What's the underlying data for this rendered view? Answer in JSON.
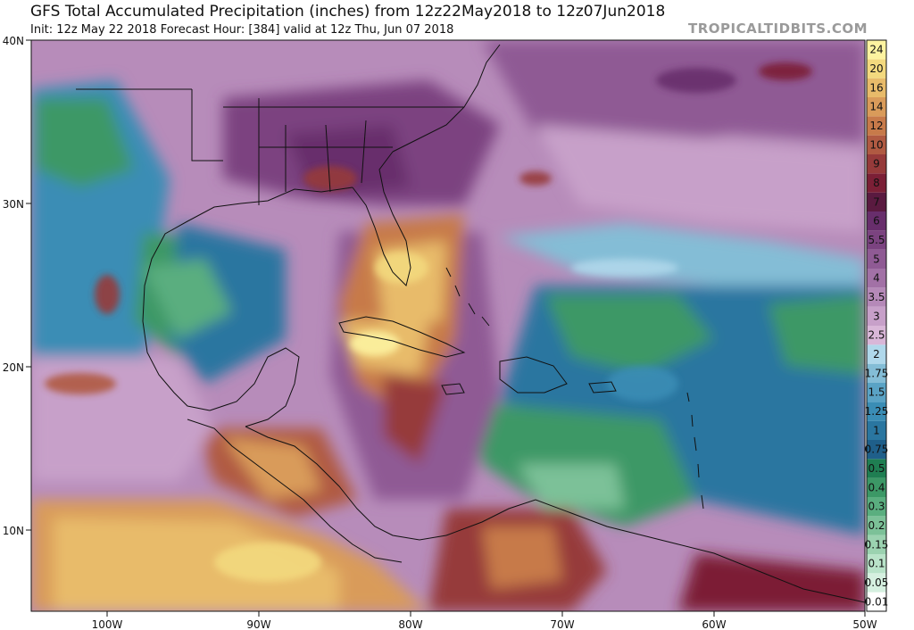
{
  "header": {
    "title": "GFS Total Accumulated Precipitation (inches) from 12z22May2018 to 12z07Jun2018",
    "subtitle": "Init: 12z May 22 2018   Forecast Hour: [384]   valid at 12z Thu, Jun 07 2018",
    "brand": "TROPICALTIDBITS.COM"
  },
  "axes": {
    "lat_labels": [
      "40N",
      "30N",
      "20N",
      "10N"
    ],
    "lon_labels": [
      "100W",
      "90W",
      "80W",
      "70W",
      "60W",
      "50W"
    ]
  },
  "colorbar": {
    "levels": [
      {
        "label": "0.01",
        "color": "#ffffff"
      },
      {
        "label": "0.05",
        "color": "#d6f0e0"
      },
      {
        "label": "0.1",
        "color": "#b9e3c9"
      },
      {
        "label": "0.15",
        "color": "#9bd2b0"
      },
      {
        "label": "0.2",
        "color": "#7cc198"
      },
      {
        "label": "0.3",
        "color": "#5aae7f"
      },
      {
        "label": "0.4",
        "color": "#3c9866"
      },
      {
        "label": "0.5",
        "color": "#1f7e52"
      },
      {
        "label": "0.75",
        "color": "#1f5f8a"
      },
      {
        "label": "1",
        "color": "#2a76a0"
      },
      {
        "label": "1.25",
        "color": "#3a8db5"
      },
      {
        "label": "1.5",
        "color": "#5aa3c5"
      },
      {
        "label": "1.75",
        "color": "#84bdd6"
      },
      {
        "label": "2",
        "color": "#b0d8eb"
      },
      {
        "label": "2.5",
        "color": "#d9b7d8"
      },
      {
        "label": "3",
        "color": "#c7a0c9"
      },
      {
        "label": "3.5",
        "color": "#b589b8"
      },
      {
        "label": "4",
        "color": "#a271a6"
      },
      {
        "label": "5",
        "color": "#8f5a94"
      },
      {
        "label": "5.5",
        "color": "#7b4380"
      },
      {
        "label": "6",
        "color": "#682e6c"
      },
      {
        "label": "7",
        "color": "#5a1a40"
      },
      {
        "label": "8",
        "color": "#7b1f36"
      },
      {
        "label": "9",
        "color": "#963a3a"
      },
      {
        "label": "10",
        "color": "#b05a42"
      },
      {
        "label": "12",
        "color": "#c77a4a"
      },
      {
        "label": "14",
        "color": "#d99b5a"
      },
      {
        "label": "16",
        "color": "#e8bb6a"
      },
      {
        "label": "20",
        "color": "#f3d97e"
      },
      {
        "label": "24",
        "color": "#fdf3a0"
      }
    ]
  }
}
